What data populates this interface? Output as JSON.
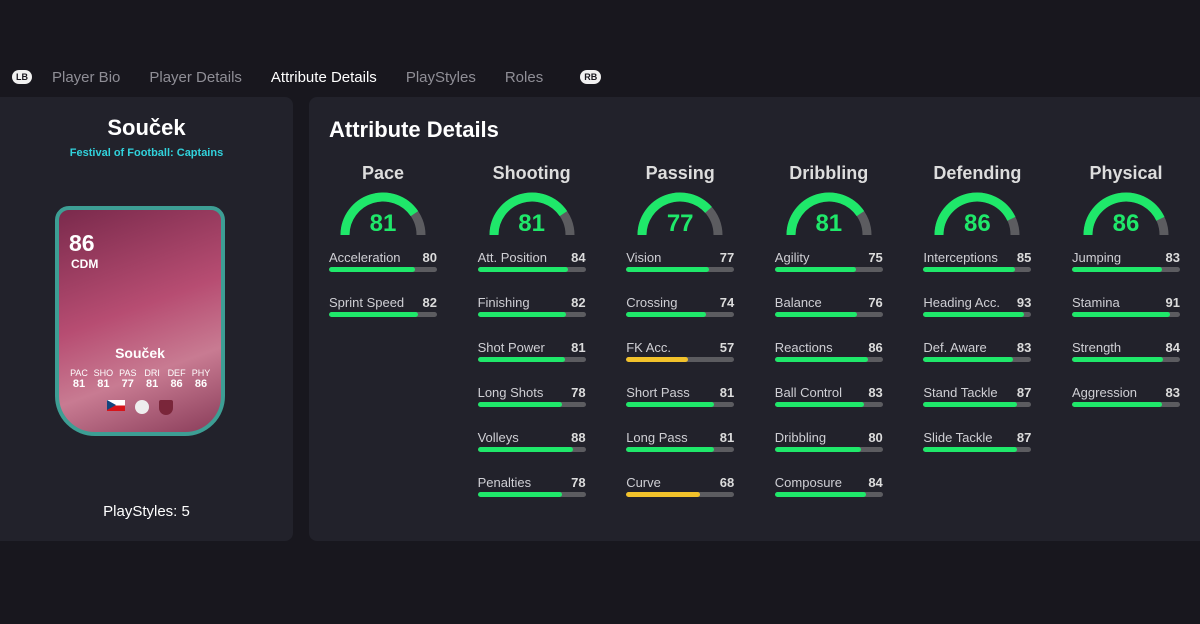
{
  "tabs": {
    "lb": "LB",
    "rb": "RB",
    "items": [
      "Player Bio",
      "Player Details",
      "Attribute Details",
      "PlayStyles",
      "Roles"
    ],
    "active": 2
  },
  "player": {
    "name": "Souček",
    "subtitle": "Festival of Football: Captains",
    "rating": "86",
    "position": "CDM",
    "card_name": "Souček",
    "card_stats": [
      {
        "k": "PAC",
        "v": "81"
      },
      {
        "k": "SHO",
        "v": "81"
      },
      {
        "k": "PAS",
        "v": "77"
      },
      {
        "k": "DRI",
        "v": "81"
      },
      {
        "k": "DEF",
        "v": "86"
      },
      {
        "k": "PHY",
        "v": "86"
      }
    ],
    "playstyles": "PlayStyles: 5"
  },
  "colors": {
    "green": "#1fe86a",
    "yellow": "#f2c22b",
    "track": "#5c5c60"
  },
  "attributes": {
    "title": "Attribute Details",
    "groups": [
      {
        "name": "Pace",
        "value": 81,
        "items": [
          {
            "n": "Acceleration",
            "v": 80
          },
          {
            "n": "Sprint Speed",
            "v": 82
          }
        ]
      },
      {
        "name": "Shooting",
        "value": 81,
        "items": [
          {
            "n": "Att. Position",
            "v": 84
          },
          {
            "n": "Finishing",
            "v": 82
          },
          {
            "n": "Shot Power",
            "v": 81
          },
          {
            "n": "Long Shots",
            "v": 78
          },
          {
            "n": "Volleys",
            "v": 88
          },
          {
            "n": "Penalties",
            "v": 78
          }
        ]
      },
      {
        "name": "Passing",
        "value": 77,
        "items": [
          {
            "n": "Vision",
            "v": 77
          },
          {
            "n": "Crossing",
            "v": 74
          },
          {
            "n": "FK Acc.",
            "v": 57
          },
          {
            "n": "Short Pass",
            "v": 81
          },
          {
            "n": "Long Pass",
            "v": 81
          },
          {
            "n": "Curve",
            "v": 68
          }
        ]
      },
      {
        "name": "Dribbling",
        "value": 81,
        "items": [
          {
            "n": "Agility",
            "v": 75
          },
          {
            "n": "Balance",
            "v": 76
          },
          {
            "n": "Reactions",
            "v": 86
          },
          {
            "n": "Ball Control",
            "v": 83
          },
          {
            "n": "Dribbling",
            "v": 80
          },
          {
            "n": "Composure",
            "v": 84
          }
        ]
      },
      {
        "name": "Defending",
        "value": 86,
        "items": [
          {
            "n": "Interceptions",
            "v": 85
          },
          {
            "n": "Heading Acc.",
            "v": 93
          },
          {
            "n": "Def. Aware",
            "v": 83
          },
          {
            "n": "Stand Tackle",
            "v": 87
          },
          {
            "n": "Slide Tackle",
            "v": 87
          }
        ]
      },
      {
        "name": "Physical",
        "value": 86,
        "items": [
          {
            "n": "Jumping",
            "v": 83
          },
          {
            "n": "Stamina",
            "v": 91
          },
          {
            "n": "Strength",
            "v": 84
          },
          {
            "n": "Aggression",
            "v": 83
          }
        ]
      }
    ]
  }
}
